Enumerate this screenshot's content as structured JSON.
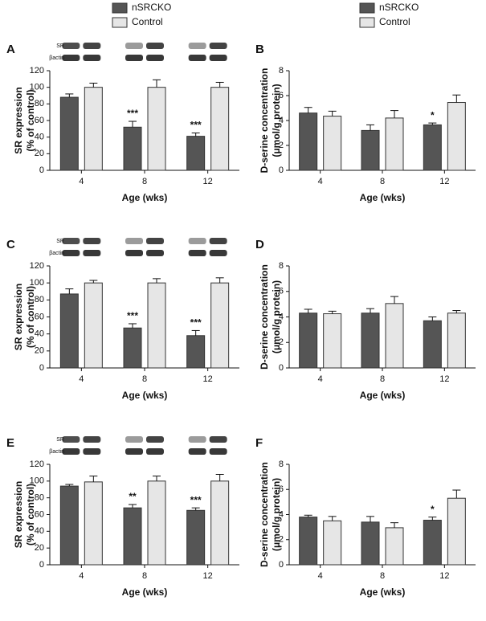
{
  "chart_data": [
    {
      "type": "bar",
      "label": "A",
      "blot_labels": [
        "SR",
        "βactin"
      ],
      "ylabel": [
        "SR expression",
        "(% of control)"
      ],
      "xlabel": "Age (wks)",
      "categories": [
        "4",
        "8",
        "12"
      ],
      "ylim": [
        0,
        120
      ],
      "yticks": [
        0,
        20,
        40,
        60,
        80,
        100,
        120
      ],
      "series": [
        {
          "name": "nSRCKO",
          "color": "#555555",
          "values": [
            88,
            52,
            41
          ],
          "errors": [
            4,
            7,
            4
          ],
          "significance": [
            null,
            "***",
            "***"
          ]
        },
        {
          "name": "Control",
          "color": "#e6e6e6",
          "values": [
            100,
            100,
            100
          ],
          "errors": [
            5,
            9,
            6
          ]
        }
      ]
    },
    {
      "type": "bar",
      "label": "B",
      "ylabel": [
        "D-serine concentration",
        "(μmol/g protein)"
      ],
      "xlabel": "Age (wks)",
      "categories": [
        "4",
        "8",
        "12"
      ],
      "ylim": [
        0,
        8
      ],
      "yticks": [
        0,
        2,
        4,
        6,
        8
      ],
      "series": [
        {
          "name": "nSRCKO",
          "color": "#555555",
          "values": [
            4.6,
            3.2,
            3.65
          ],
          "errors": [
            0.45,
            0.45,
            0.15
          ],
          "significance": [
            null,
            null,
            "*"
          ]
        },
        {
          "name": "Control",
          "color": "#e6e6e6",
          "values": [
            4.35,
            4.2,
            5.45
          ],
          "errors": [
            0.4,
            0.6,
            0.6
          ]
        }
      ]
    },
    {
      "type": "bar",
      "label": "C",
      "blot_labels": [
        "SR",
        "βactin"
      ],
      "ylabel": [
        "SR expression",
        "(% of control)"
      ],
      "xlabel": "Age (wks)",
      "categories": [
        "4",
        "8",
        "12"
      ],
      "ylim": [
        0,
        120
      ],
      "yticks": [
        0,
        20,
        40,
        60,
        80,
        100,
        120
      ],
      "series": [
        {
          "name": "nSRCKO",
          "color": "#555555",
          "values": [
            87,
            47,
            38
          ],
          "errors": [
            6,
            5,
            6
          ],
          "significance": [
            null,
            "***",
            "***"
          ]
        },
        {
          "name": "Control",
          "color": "#e6e6e6",
          "values": [
            100,
            100,
            100
          ],
          "errors": [
            3,
            5,
            6
          ]
        }
      ]
    },
    {
      "type": "bar",
      "label": "D",
      "ylabel": [
        "D-serine concentration",
        "(μmol/g protein)"
      ],
      "xlabel": "Age (wks)",
      "categories": [
        "4",
        "8",
        "12"
      ],
      "ylim": [
        0,
        8
      ],
      "yticks": [
        0,
        2,
        4,
        6,
        8
      ],
      "series": [
        {
          "name": "nSRCKO",
          "color": "#555555",
          "values": [
            4.3,
            4.3,
            3.7
          ],
          "errors": [
            0.3,
            0.35,
            0.3
          ]
        },
        {
          "name": "Control",
          "color": "#e6e6e6",
          "values": [
            4.25,
            5.05,
            4.3
          ],
          "errors": [
            0.2,
            0.55,
            0.2
          ]
        }
      ]
    },
    {
      "type": "bar",
      "label": "E",
      "blot_labels": [
        "SR",
        "βactin"
      ],
      "ylabel": [
        "SR expression",
        "(% of control)"
      ],
      "xlabel": "Age (wks)",
      "categories": [
        "4",
        "8",
        "12"
      ],
      "ylim": [
        0,
        120
      ],
      "yticks": [
        0,
        20,
        40,
        60,
        80,
        100,
        120
      ],
      "series": [
        {
          "name": "nSRCKO",
          "color": "#555555",
          "values": [
            94,
            68,
            65
          ],
          "errors": [
            2,
            4,
            3
          ],
          "significance": [
            null,
            "**",
            "***"
          ]
        },
        {
          "name": "Control",
          "color": "#e6e6e6",
          "values": [
            99,
            100,
            100
          ],
          "errors": [
            7,
            6,
            8
          ]
        }
      ]
    },
    {
      "type": "bar",
      "label": "F",
      "ylabel": [
        "D-serine concentration",
        "(μmol/g protein)"
      ],
      "xlabel": "Age (wks)",
      "categories": [
        "4",
        "8",
        "12"
      ],
      "ylim": [
        0,
        8
      ],
      "yticks": [
        0,
        2,
        4,
        6,
        8
      ],
      "series": [
        {
          "name": "nSRCKO",
          "color": "#555555",
          "values": [
            3.8,
            3.4,
            3.55
          ],
          "errors": [
            0.15,
            0.45,
            0.25
          ],
          "significance": [
            null,
            null,
            "*"
          ]
        },
        {
          "name": "Control",
          "color": "#e6e6e6",
          "values": [
            3.5,
            2.95,
            5.3
          ],
          "errors": [
            0.35,
            0.4,
            0.65
          ]
        }
      ]
    }
  ]
}
